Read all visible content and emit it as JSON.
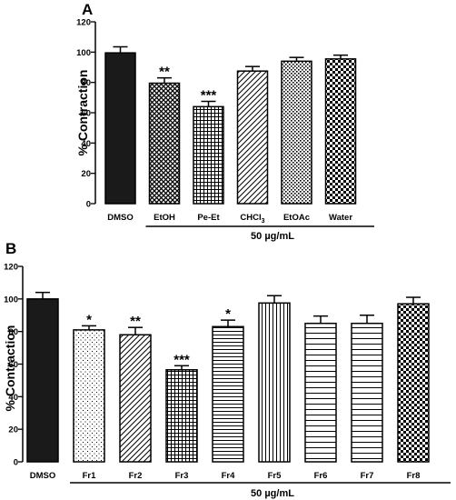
{
  "chart_data": [
    {
      "panel": "A",
      "type": "bar",
      "ylabel": "% Contraction",
      "group_label": "50 µg/mL",
      "ylim": [
        0,
        120
      ],
      "yticks": [
        0,
        20,
        40,
        60,
        80,
        100,
        120
      ],
      "categories": [
        "DMSO",
        "EtOH",
        "Pe-Et",
        "CHCl3",
        "EtOAc",
        "Water"
      ],
      "values": [
        99.5,
        79.5,
        64,
        87.5,
        94,
        95.5
      ],
      "errors": [
        4,
        3.5,
        3.5,
        3,
        2.5,
        2.5
      ],
      "significance": [
        "",
        "**",
        "***",
        "",
        "",
        ""
      ],
      "fills": [
        "solid",
        "crosshatch",
        "grid",
        "diag",
        "dots",
        "checker"
      ],
      "grouped_from_index": 1
    },
    {
      "panel": "B",
      "type": "bar",
      "ylabel": "% Contraction",
      "group_label": "50 µg/mL",
      "ylim": [
        0,
        120
      ],
      "yticks": [
        0,
        20,
        40,
        60,
        80,
        100,
        120
      ],
      "categories": [
        "DMSO",
        "Fr1",
        "Fr2",
        "Fr3",
        "Fr4",
        "Fr5",
        "Fr6",
        "Fr7",
        "Fr8"
      ],
      "values": [
        100,
        81,
        78,
        56.5,
        83,
        97.5,
        85,
        85,
        97
      ],
      "errors": [
        4,
        2.5,
        4.5,
        2.5,
        4,
        4.5,
        4.5,
        5,
        4
      ],
      "significance": [
        "",
        "*",
        "**",
        "***",
        "*",
        "",
        "",
        "",
        ""
      ],
      "fills": [
        "solid",
        "stipple",
        "diag",
        "grid",
        "hlines",
        "vlines",
        "wide-hlines",
        "wide-hlines",
        "checker"
      ],
      "grouped_from_index": 1
    }
  ]
}
